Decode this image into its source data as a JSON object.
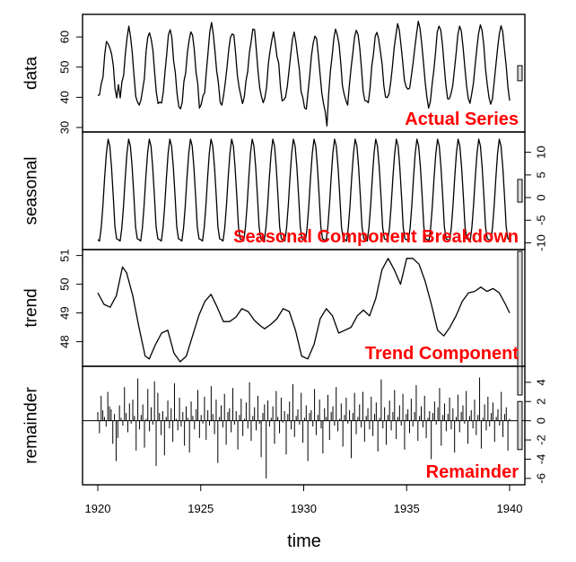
{
  "chart_data": {
    "type": "line",
    "title": "",
    "xlabel": "time",
    "x_range": [
      1920,
      1940
    ],
    "x_ticks": [
      1920,
      1925,
      1930,
      1935,
      1940
    ],
    "x_tick_labels": [
      "1920",
      "1925",
      "1930",
      "1935",
      "1940"
    ],
    "panels": [
      {
        "name": "data",
        "ylabel": "data",
        "annotation": "Actual Series",
        "y_range": [
          30,
          66
        ],
        "y_ticks": [
          30,
          40,
          50,
          60
        ],
        "y_tick_labels": [
          "30",
          "40",
          "50",
          "60"
        ],
        "y_axis_side": "left",
        "values": [
          40.6,
          40.8,
          44.4,
          46.7,
          54.1,
          58.5,
          57.7,
          56.4,
          54.3,
          50.5,
          42.9,
          39.8,
          44.2,
          39.8,
          45.1,
          47.3,
          54.4,
          59.6,
          63.6,
          60.1,
          54.8,
          47.5,
          40.3,
          38.5,
          37.4,
          39.0,
          42.4,
          46.2,
          55.1,
          59.9,
          61.4,
          59.3,
          55.4,
          48.1,
          41.5,
          37.9,
          38.4,
          38.1,
          41.7,
          48.4,
          54.2,
          60.7,
          62.4,
          59.7,
          52.1,
          48.2,
          41.3,
          36.9,
          36.2,
          38.3,
          45.3,
          48.0,
          54.8,
          58.9,
          61.7,
          60.6,
          55.9,
          48.3,
          44.5,
          36.4,
          37.6,
          40.4,
          41.5,
          48.5,
          54.9,
          61.6,
          64.8,
          61.0,
          55.3,
          48.7,
          44.9,
          38.3,
          37.4,
          40.6,
          44.9,
          49.9,
          55.9,
          59.9,
          61.0,
          60.6,
          54.6,
          47.2,
          43.3,
          40.6,
          37.9,
          40.0,
          45.5,
          48.6,
          54.8,
          58.4,
          62.6,
          62.4,
          55.7,
          48.6,
          43.1,
          40.3,
          38.2,
          39.9,
          43.6,
          51.1,
          55.6,
          59.0,
          61.7,
          58.0,
          53.5,
          51.2,
          43.4,
          38.8,
          39.2,
          40.1,
          43.8,
          49.0,
          54.3,
          59.3,
          61.6,
          58.1,
          53.5,
          49.1,
          41.9,
          39.9,
          36.5,
          36.1,
          41.6,
          47.3,
          53.7,
          58.0,
          60.3,
          59.4,
          53.9,
          47.8,
          41.4,
          37.9,
          35.3,
          30.5,
          41.0,
          48.8,
          53.7,
          59.6,
          62.6,
          60.7,
          57.6,
          51.4,
          43.8,
          41.0,
          38.9,
          37.4,
          44.0,
          49.7,
          54.5,
          60.0,
          62.2,
          60.9,
          56.6,
          49.9,
          41.9,
          38.9,
          38.8,
          38.2,
          42.8,
          50.4,
          54.4,
          60.3,
          61.5,
          59.4,
          55.2,
          51.0,
          43.9,
          40.1,
          39.9,
          41.1,
          45.0,
          50.2,
          56.3,
          60.5,
          64.4,
          62.2,
          57.1,
          51.6,
          45.6,
          43.4,
          42.7,
          43.0,
          47.1,
          51.6,
          56.5,
          61.1,
          65.2,
          62.9,
          57.6,
          51.5,
          45.0,
          40.1,
          36.4,
          38.7,
          44.2,
          48.9,
          54.6,
          61.6,
          63.6,
          62.4,
          57.7,
          50.9,
          44.2,
          39.5,
          39.5,
          41.2,
          43.8,
          49.1,
          54.9,
          60.9,
          63.6,
          61.9,
          56.7,
          50.0,
          43.9,
          39.7,
          38.0,
          41.0,
          44.8,
          50.7,
          56.2,
          61.1,
          64.0,
          62.2,
          57.4,
          49.6,
          44.4,
          40.0,
          37.7,
          39.4,
          44.8,
          50.3,
          56.2,
          60.9,
          63.7,
          61.8,
          56.0,
          50.4,
          43.5,
          38.9
        ]
      },
      {
        "name": "seasonal",
        "ylabel": "seasonal",
        "annotation": "Seasonal Component Breakdown",
        "y_range": [
          -10.5,
          13.5
        ],
        "y_ticks": [
          -10,
          -5,
          0,
          5,
          10
        ],
        "y_tick_labels": [
          "-10",
          "-5",
          "0",
          "5",
          "10"
        ],
        "y_axis_side": "right",
        "period": 12,
        "cycle_values": [
          -9.3,
          -9.6,
          -6.7,
          -1.8,
          4.4,
          9.8,
          12.9,
          11.4,
          6.7,
          0.4,
          -6.5,
          -9.1
        ]
      },
      {
        "name": "trend",
        "ylabel": "trend",
        "annotation": "Trend Component",
        "y_range": [
          47.3,
          51.05
        ],
        "y_ticks": [
          48,
          49,
          50,
          51
        ],
        "y_tick_labels": [
          "48",
          "49",
          "50",
          "51"
        ],
        "y_axis_side": "left",
        "x": [
          1920.0,
          1920.3,
          1920.6,
          1920.9,
          1921.2,
          1921.4,
          1921.7,
          1922.0,
          1922.3,
          1922.5,
          1922.8,
          1923.1,
          1923.4,
          1923.7,
          1924.0,
          1924.3,
          1924.6,
          1924.9,
          1925.2,
          1925.5,
          1925.8,
          1926.1,
          1926.4,
          1926.7,
          1927.0,
          1927.3,
          1927.6,
          1927.9,
          1928.1,
          1928.4,
          1928.7,
          1929.0,
          1929.3,
          1929.6,
          1929.9,
          1930.2,
          1930.5,
          1930.8,
          1931.1,
          1931.4,
          1931.7,
          1932.0,
          1932.3,
          1932.6,
          1932.9,
          1933.2,
          1933.5,
          1933.8,
          1934.1,
          1934.4,
          1934.7,
          1935.0,
          1935.3,
          1935.6,
          1935.9,
          1936.2,
          1936.5,
          1936.8,
          1937.1,
          1937.4,
          1937.7,
          1938.0,
          1938.3,
          1938.6,
          1938.9,
          1939.2,
          1939.5,
          1939.8,
          1940.0
        ],
        "y": [
          49.7,
          49.3,
          49.2,
          49.6,
          50.6,
          50.4,
          49.6,
          48.5,
          47.5,
          47.4,
          47.9,
          48.3,
          48.4,
          47.6,
          47.3,
          47.5,
          48.2,
          48.9,
          49.4,
          49.65,
          49.2,
          48.7,
          48.7,
          48.85,
          49.15,
          49.05,
          48.75,
          48.55,
          48.45,
          48.6,
          48.8,
          49.15,
          49.05,
          48.4,
          47.5,
          47.4,
          47.9,
          48.8,
          49.15,
          48.9,
          48.3,
          48.4,
          48.5,
          48.9,
          49.1,
          48.9,
          49.5,
          50.5,
          50.9,
          50.5,
          50.0,
          50.9,
          50.9,
          50.7,
          50.1,
          49.3,
          48.4,
          48.2,
          48.5,
          48.9,
          49.4,
          49.7,
          49.75,
          49.9,
          49.75,
          49.85,
          49.7,
          49.3,
          49.0
        ]
      },
      {
        "name": "remainder",
        "ylabel": "remainder",
        "annotation": "Remainder",
        "y_range": [
          -6.2,
          5.2
        ],
        "y_ticks": [
          -6,
          -4,
          -2,
          0,
          2,
          4
        ],
        "y_tick_labels": [
          "-6",
          "-4",
          "-2",
          "0",
          "2",
          "4"
        ],
        "y_axis_side": "right",
        "style": "vertical-lines",
        "values": [
          0.9,
          -1.3,
          2.6,
          1.1,
          0.4,
          -0.6,
          3.0,
          1.5,
          1.2,
          -2.4,
          0.7,
          -4.2,
          -1.8,
          1.6,
          0.3,
          -0.5,
          3.5,
          0.8,
          -1.2,
          1.8,
          -0.3,
          2.2,
          0.5,
          -3.1,
          4.4,
          -0.9,
          0.6,
          1.7,
          -2.8,
          0.2,
          3.3,
          -1.1,
          1.4,
          -0.4,
          4.1,
          -4.7,
          2.9,
          0.8,
          -1.5,
          1.0,
          -3.6,
          0.4,
          2.1,
          -0.8,
          1.3,
          -2.2,
          3.9,
          0.2,
          -1.0,
          2.4,
          -0.6,
          0.9,
          -2.6,
          1.5,
          0.3,
          -3.3,
          2.0,
          0.5,
          -0.9,
          1.2,
          3.2,
          -1.8,
          0.6,
          -0.3,
          2.5,
          -2.0,
          1.1,
          -0.5,
          3.6,
          0.7,
          -1.4,
          2.2,
          -4.4,
          0.4,
          1.6,
          -0.7,
          2.8,
          -2.5,
          0.9,
          1.3,
          -1.2,
          3.4,
          -0.4,
          1.0,
          -3.0,
          0.6,
          2.3,
          -1.6,
          0.2,
          1.9,
          -0.8,
          4.0,
          -2.1,
          0.5,
          1.4,
          -1.0,
          2.6,
          -0.3,
          -3.8,
          0.8,
          1.7,
          -6.0,
          2.1,
          -0.6,
          0.3,
          1.5,
          -2.4,
          3.1,
          0.4,
          -1.3,
          2.4,
          -0.2,
          1.0,
          -3.5,
          0.7,
          2.0,
          -0.9,
          3.8,
          -1.7,
          0.5,
          1.2,
          -0.4,
          2.9,
          -2.3,
          0.3,
          1.6,
          -4.2,
          0.8,
          1.1,
          -0.6,
          3.3,
          -1.5,
          0.6,
          2.2,
          -0.8,
          -3.4,
          1.3,
          0.4,
          2.7,
          -2.0,
          0.9,
          1.5,
          -0.5,
          3.5,
          -1.1,
          0.2,
          1.8,
          -2.7,
          0.6,
          2.4,
          -0.3,
          1.1,
          -3.9,
          0.8,
          2.9,
          -1.4,
          0.4,
          1.7,
          -0.7,
          3.0,
          -2.2,
          0.5,
          1.3,
          -0.9,
          2.5,
          -1.6,
          0.7,
          1.9,
          -3.2,
          0.3,
          4.3,
          -0.8,
          1.4,
          -2.5,
          0.6,
          2.1,
          -1.0,
          0.9,
          3.2,
          -1.9,
          0.4,
          1.6,
          -0.5,
          2.8,
          -3.0,
          0.7,
          1.2,
          -1.3,
          2.3,
          -0.6,
          0.9,
          3.7,
          -2.1,
          0.5,
          1.5,
          -0.7,
          2.6,
          -1.8,
          0.3,
          1.0,
          -4.0,
          0.8,
          2.0,
          -0.4,
          1.4,
          3.4,
          -2.6,
          0.6,
          1.8,
          -1.1,
          0.7,
          2.4,
          -0.9,
          1.3,
          -3.3,
          0.4,
          2.7,
          -1.2,
          0.9,
          1.6,
          -0.3,
          3.1,
          -2.4,
          0.5,
          1.1,
          -0.8,
          2.2,
          -1.5,
          0.6,
          4.5,
          -2.9,
          0.3,
          1.7,
          -1.0,
          2.5,
          -0.6,
          0.8,
          1.9,
          -2.2,
          0.4,
          1.2,
          -0.5,
          3.0,
          -1.7,
          0.7,
          1.4,
          -3.1,
          0.2
        ]
      }
    ],
    "scale_bars": "right-side gray bars, equal data-unit span in each panel",
    "scale_bar_span": 5,
    "annotation_color": "#ff0000",
    "line_color": "#000000",
    "scale_bar_color": "#d9d9d9",
    "grid": false,
    "legend": "none"
  }
}
